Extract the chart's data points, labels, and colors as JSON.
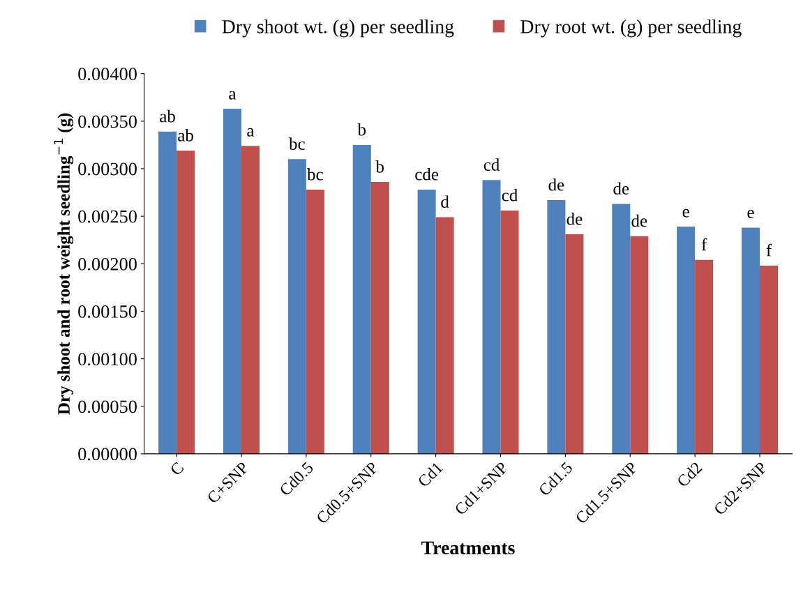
{
  "chart_data": {
    "type": "bar",
    "xlabel": "Treatments",
    "ylabel": "Dry shoot and root weight seedling$^{−1}$ (g)",
    "categories": [
      "C",
      "C+SNP",
      "Cd0.5",
      "Cd0.5+SNP",
      "Cd1",
      "Cd1+SNP",
      "Cd1.5",
      "Cd1.5+SNP",
      "Cd2",
      "Cd2+SNP"
    ],
    "series": [
      {
        "name": "Dry shoot wt. (g) per seedling",
        "color": "#4f81bd",
        "values": [
          0.00339,
          0.00363,
          0.0031,
          0.00325,
          0.00278,
          0.00288,
          0.00267,
          0.00263,
          0.00239,
          0.00238
        ],
        "value_labels": [
          "ab",
          "a",
          "bc",
          "b",
          "cde",
          "cd",
          "de",
          "de",
          "e",
          "e"
        ]
      },
      {
        "name": "Dry root wt. (g) per seedling",
        "color": "#c0504d",
        "values": [
          0.00319,
          0.00324,
          0.00278,
          0.00286,
          0.00249,
          0.00256,
          0.00231,
          0.00229,
          0.00204,
          0.00198
        ],
        "value_labels": [
          "ab",
          "a",
          "bc",
          "b",
          "d",
          "cd",
          "de",
          "de",
          "f",
          "f"
        ]
      }
    ],
    "ylim": [
      0,
      0.004
    ],
    "yticks": [
      {
        "value": 0,
        "label": "0.00000"
      },
      {
        "value": 0.0005,
        "label": "0.00050"
      },
      {
        "value": 0.001,
        "label": "0.00100"
      },
      {
        "value": 0.0015,
        "label": "0.00150"
      },
      {
        "value": 0.002,
        "label": "0.00200"
      },
      {
        "value": 0.0025,
        "label": "0.00250"
      },
      {
        "value": 0.003,
        "label": "0.00300"
      },
      {
        "value": 0.0035,
        "label": "0.00350"
      },
      {
        "value": 0.004,
        "label": "0.00400"
      }
    ],
    "grid": false,
    "legend": "top"
  }
}
